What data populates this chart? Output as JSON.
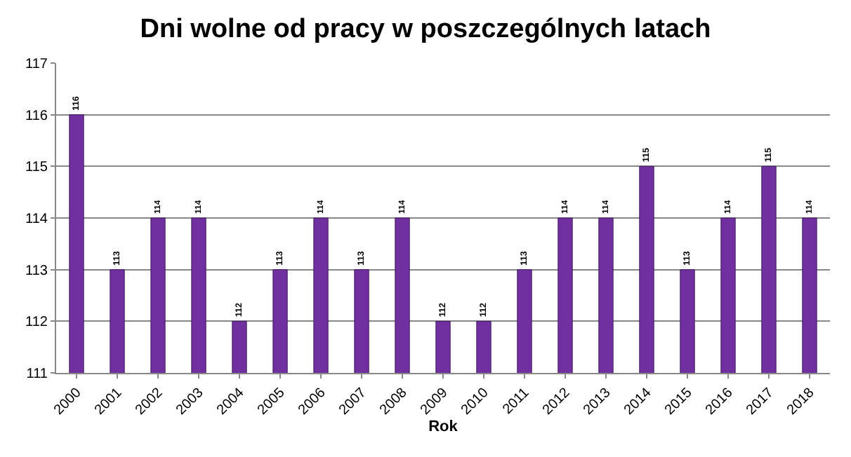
{
  "chart_data": {
    "type": "bar",
    "title": "Dni wolne od pracy w poszczególnych latach",
    "xlabel": "Rok",
    "categories": [
      "2000",
      "2001",
      "2002",
      "2003",
      "2004",
      "2005",
      "2006",
      "2007",
      "2008",
      "2009",
      "2010",
      "2011",
      "2012",
      "2013",
      "2014",
      "2015",
      "2016",
      "2017",
      "2018"
    ],
    "values": [
      116,
      113,
      114,
      114,
      112,
      113,
      114,
      113,
      114,
      112,
      112,
      113,
      114,
      114,
      115,
      113,
      114,
      115,
      114
    ],
    "color": "#7030a0",
    "ylim": [
      111,
      117
    ],
    "yticks": [
      111,
      112,
      113,
      114,
      115,
      116,
      117
    ],
    "grid": "y",
    "data_labels": true,
    "legend": false
  }
}
